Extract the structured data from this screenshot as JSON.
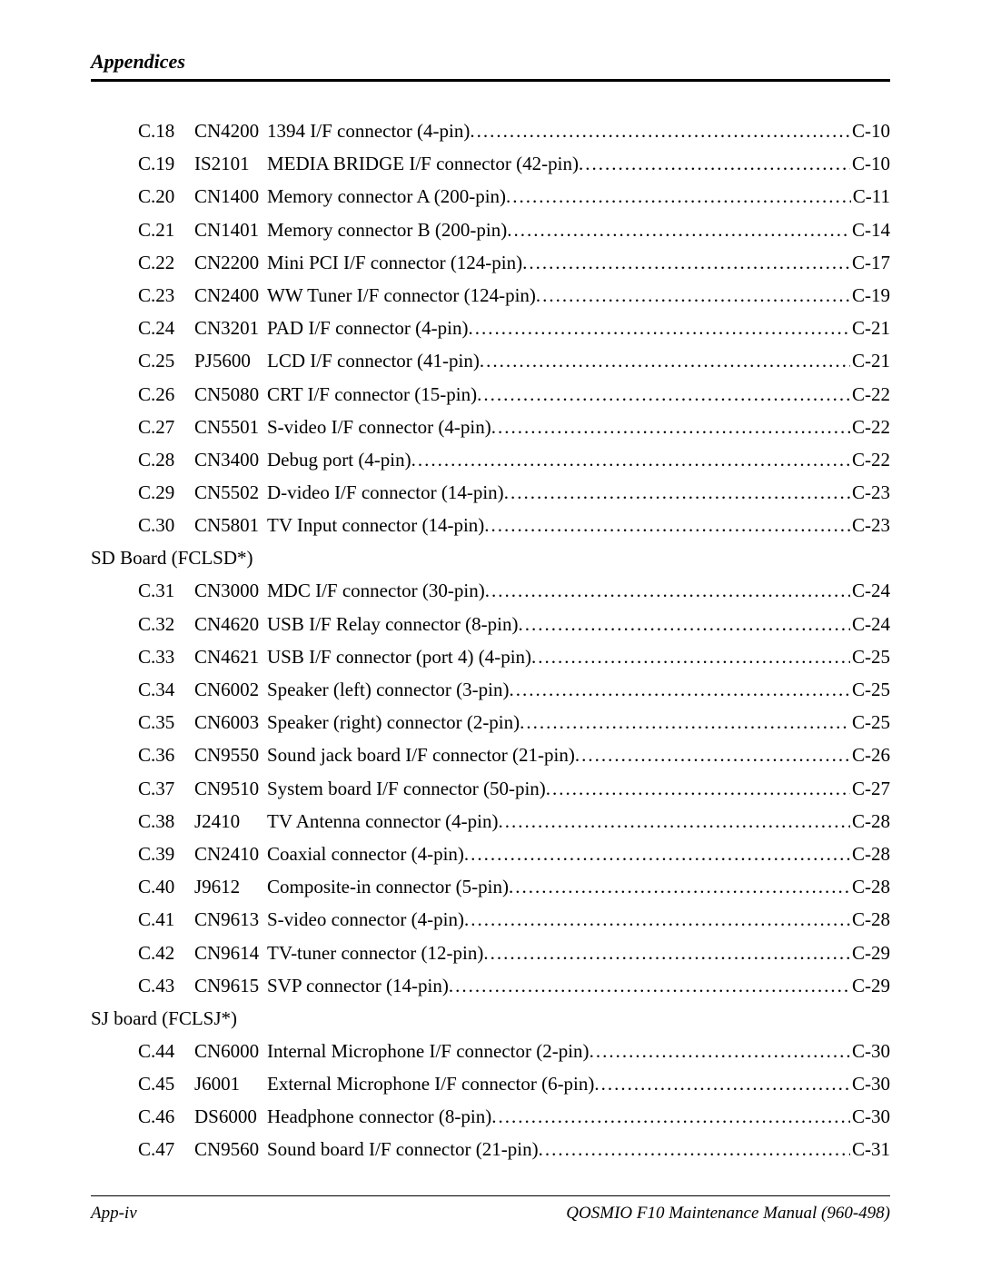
{
  "header": {
    "title": "Appendices"
  },
  "footer": {
    "left": "App-iv",
    "right": "QOSMIO F10 Maintenance Manual (960-498)"
  },
  "sections": [
    {
      "heading": null,
      "entries": [
        {
          "num": "C.18",
          "code": "CN4200",
          "desc": "1394 I/F connector (4-pin)",
          "page": "C-10"
        },
        {
          "num": "C.19",
          "code": "IS2101",
          "desc": "MEDIA BRIDGE I/F connector (42-pin)",
          "page": "C-10"
        },
        {
          "num": "C.20",
          "code": "CN1400",
          "desc": "Memory connector A (200-pin)",
          "page": "C-11"
        },
        {
          "num": "C.21",
          "code": "CN1401",
          "desc": "Memory connector B (200-pin)",
          "page": "C-14"
        },
        {
          "num": "C.22",
          "code": "CN2200",
          "desc": "Mini PCI I/F connector (124-pin)",
          "page": "C-17"
        },
        {
          "num": "C.23",
          "code": "CN2400",
          "desc": "WW Tuner I/F connector (124-pin)",
          "page": "C-19"
        },
        {
          "num": "C.24",
          "code": "CN3201",
          "desc": "PAD I/F connector (4-pin)",
          "page": "C-21"
        },
        {
          "num": "C.25",
          "code": "PJ5600",
          "desc": "LCD I/F connector (41-pin)",
          "page": "C-21"
        },
        {
          "num": "C.26",
          "code": "CN5080",
          "desc": "CRT I/F connector (15-pin)",
          "page": "C-22"
        },
        {
          "num": "C.27",
          "code": "CN5501",
          "desc": "S-video I/F connector (4-pin)",
          "page": "C-22"
        },
        {
          "num": "C.28",
          "code": "CN3400",
          "desc": "Debug port (4-pin)",
          "page": "C-22"
        },
        {
          "num": "C.29",
          "code": "CN5502",
          "desc": "D-video I/F connector (14-pin)",
          "page": "C-23"
        },
        {
          "num": "C.30",
          "code": "CN5801",
          "desc": "TV Input connector (14-pin)",
          "page": "C-23"
        }
      ]
    },
    {
      "heading": "SD Board (FCLSD*)",
      "entries": [
        {
          "num": "C.31",
          "code": "CN3000",
          "desc": "MDC I/F connector (30-pin)",
          "page": "C-24"
        },
        {
          "num": "C.32",
          "code": "CN4620",
          "desc": "USB I/F Relay connector (8-pin)",
          "page": "C-24"
        },
        {
          "num": "C.33",
          "code": "CN4621",
          "desc": "USB I/F connector (port 4) (4-pin)",
          "page": "C-25"
        },
        {
          "num": "C.34",
          "code": "CN6002",
          "desc": "Speaker (left) connector (3-pin)",
          "page": "C-25"
        },
        {
          "num": "C.35",
          "code": "CN6003",
          "desc": "Speaker (right) connector (2-pin)",
          "page": "C-25"
        },
        {
          "num": "C.36",
          "code": "CN9550",
          "desc": "Sound jack board I/F connector (21-pin)",
          "page": "C-26"
        },
        {
          "num": "C.37",
          "code": "CN9510",
          "desc": "System board I/F connector (50-pin)",
          "page": "C-27"
        },
        {
          "num": "C.38",
          "code": "J2410",
          "desc": "TV Antenna connector (4-pin)",
          "page": "C-28"
        },
        {
          "num": "C.39",
          "code": "CN2410",
          "desc": "Coaxial connector (4-pin)",
          "page": "C-28"
        },
        {
          "num": "C.40",
          "code": "J9612",
          "desc": "Composite-in connector (5-pin)",
          "page": "C-28"
        },
        {
          "num": "C.41",
          "code": "CN9613",
          "desc": "S-video connector (4-pin)",
          "page": "C-28"
        },
        {
          "num": "C.42",
          "code": "CN9614",
          "desc": "TV-tuner connector (12-pin)",
          "page": "C-29"
        },
        {
          "num": "C.43",
          "code": "CN9615",
          "desc": "SVP connector (14-pin)",
          "page": "C-29"
        }
      ]
    },
    {
      "heading": "SJ board (FCLSJ*)",
      "entries": [
        {
          "num": "C.44",
          "code": "CN6000",
          "desc": "Internal Microphone I/F connector (2-pin)",
          "page": "C-30"
        },
        {
          "num": "C.45",
          "code": "J6001",
          "desc": "External Microphone I/F connector (6-pin)",
          "page": "C-30"
        },
        {
          "num": "C.46",
          "code": "DS6000",
          "desc": "Headphone connector (8-pin)",
          "page": "C-30"
        },
        {
          "num": "C.47",
          "code": "CN9560",
          "desc": "Sound board I/F connector (21-pin)",
          "page": "C-31"
        }
      ]
    }
  ]
}
